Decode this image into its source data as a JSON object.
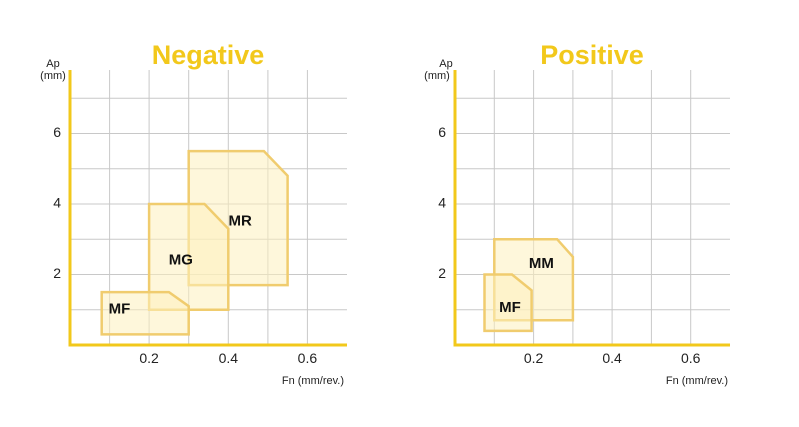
{
  "chart_data": [
    {
      "type": "area",
      "title": "Negative",
      "xlabel": "Fn (mm/rev.)",
      "ylabel_top": "Ap",
      "ylabel_unit": "(mm)",
      "xlim": [
        0,
        0.7
      ],
      "ylim": [
        0,
        7.8
      ],
      "xticks": [
        0.2,
        0.4,
        0.6
      ],
      "xtick_labels": [
        "0.2",
        "0.4",
        "0.6"
      ],
      "yticks": [
        2,
        4,
        6
      ],
      "ytick_labels": [
        "2",
        "4",
        "6"
      ],
      "grid": true,
      "axis_color": "#f2c81b",
      "title_color": "#f2c81b",
      "region_fill": "#fdf0be",
      "region_stroke": "#f0cc6e",
      "regions": [
        {
          "label": "MR",
          "polygon": [
            [
              0.3,
              1.7
            ],
            [
              0.3,
              5.5
            ],
            [
              0.49,
              5.5
            ],
            [
              0.55,
              4.8
            ],
            [
              0.55,
              1.7
            ]
          ],
          "label_at": [
            0.43,
            3.5
          ]
        },
        {
          "label": "MG",
          "polygon": [
            [
              0.2,
              1.0
            ],
            [
              0.2,
              4.0
            ],
            [
              0.34,
              4.0
            ],
            [
              0.4,
              3.3
            ],
            [
              0.4,
              1.0
            ]
          ],
          "label_at": [
            0.28,
            2.4
          ]
        },
        {
          "label": "MF",
          "polygon": [
            [
              0.08,
              0.3
            ],
            [
              0.08,
              1.5
            ],
            [
              0.25,
              1.5
            ],
            [
              0.3,
              1.1
            ],
            [
              0.3,
              0.3
            ]
          ],
          "label_at": [
            0.125,
            1.0
          ]
        }
      ]
    },
    {
      "type": "area",
      "title": "Positive",
      "xlabel": "Fn (mm/rev.)",
      "ylabel_top": "Ap",
      "ylabel_unit": "(mm)",
      "xlim": [
        0,
        0.7
      ],
      "ylim": [
        0,
        7.8
      ],
      "xticks": [
        0.2,
        0.4,
        0.6
      ],
      "xtick_labels": [
        "0.2",
        "0.4",
        "0.6"
      ],
      "yticks": [
        2,
        4,
        6
      ],
      "ytick_labels": [
        "2",
        "4",
        "6"
      ],
      "grid": true,
      "axis_color": "#f2c81b",
      "title_color": "#f2c81b",
      "region_fill": "#fdf0be",
      "region_stroke": "#f0cc6e",
      "regions": [
        {
          "label": "MM",
          "polygon": [
            [
              0.1,
              0.7
            ],
            [
              0.1,
              3.0
            ],
            [
              0.26,
              3.0
            ],
            [
              0.3,
              2.5
            ],
            [
              0.3,
              0.7
            ]
          ],
          "label_at": [
            0.22,
            2.3
          ]
        },
        {
          "label": "MF",
          "polygon": [
            [
              0.075,
              0.4
            ],
            [
              0.075,
              2.0
            ],
            [
              0.145,
              2.0
            ],
            [
              0.195,
              1.55
            ],
            [
              0.195,
              0.4
            ]
          ],
          "label_at": [
            0.14,
            1.05
          ]
        }
      ]
    }
  ]
}
